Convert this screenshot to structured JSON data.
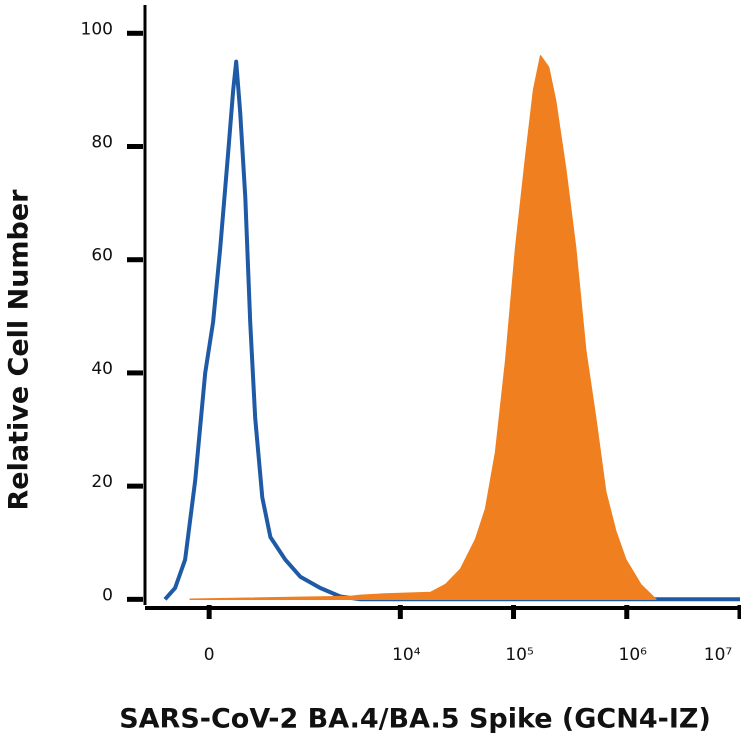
{
  "chart_data": {
    "type": "histogram-overlay",
    "x_label": "SARS-CoV-2 BA.4/BA.5 Spike (GCN4-IZ)",
    "y_label": "Relative Cell Number",
    "x_scale": "biexponential",
    "xlim": [
      -700,
      10000000
    ],
    "ylim": [
      -1,
      105
    ],
    "xticks": [
      0,
      {
        "value": 10000,
        "label": "10⁴"
      },
      {
        "value": 100000,
        "label": "10⁵"
      },
      {
        "value": 1000000,
        "label": "10⁶"
      },
      {
        "value": 10000000,
        "label": "10⁷"
      }
    ],
    "yticks": [
      0,
      20,
      40,
      60,
      80,
      100
    ],
    "series": [
      {
        "color": "#1f5aa6",
        "fill": false,
        "x": [
          -419,
          -307,
          -209,
          -118,
          -33,
          33,
          93,
          163,
          209,
          237,
          276,
          329,
          383,
          443,
          535,
          653,
          921,
          1275,
          1944,
          2940,
          4428,
          10000000
        ],
        "values": [
          0,
          2,
          7,
          21,
          40,
          49,
          62,
          79,
          90,
          95,
          86,
          71,
          49,
          32,
          18,
          11,
          7,
          4,
          2,
          0.5,
          0,
          0
        ]
      },
      {
        "color": "#f07f1f",
        "fill": true,
        "x": [
          -163,
          3612,
          4428,
          6671,
          18460,
          25090,
          34040,
          46200,
          56600,
          69400,
          85100,
          104300,
          127900,
          150500,
          173500,
          204200,
          235500,
          288800,
          354000,
          434000,
          532000,
          652000,
          800000,
          980000,
          1330000,
          1806000
        ],
        "values": [
          0,
          0.5,
          0.7,
          0.9,
          1.2,
          2.6,
          5.3,
          10.6,
          16,
          26,
          42,
          62,
          78,
          90,
          96,
          94,
          88,
          76,
          62,
          44,
          32,
          19,
          12,
          7,
          2.6,
          0
        ]
      }
    ]
  }
}
